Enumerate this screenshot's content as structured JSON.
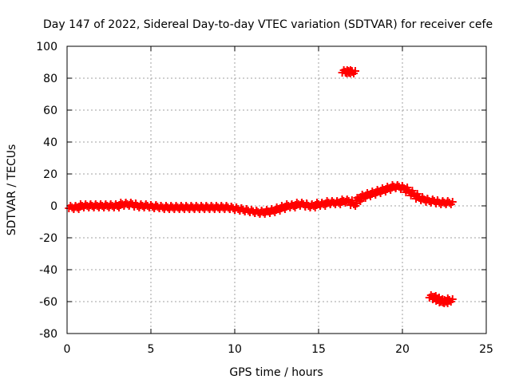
{
  "chart_data": {
    "type": "scatter",
    "title": "Day 147 of 2022, Sidereal Day-to-day VTEC variation (SDTVAR) for receiver cefe",
    "xlabel": "GPS time / hours",
    "ylabel": "SDTVAR / TECUs",
    "xlim": [
      0,
      25
    ],
    "ylim": [
      -80,
      100
    ],
    "xticks": [
      0,
      5,
      10,
      15,
      20,
      25
    ],
    "yticks": [
      -80,
      -60,
      -40,
      -20,
      0,
      20,
      40,
      60,
      80,
      100
    ],
    "grid": true,
    "marker": "plus",
    "series": [
      {
        "name": "SDTVAR",
        "color": "#ff0000",
        "x": [
          0.3,
          0.6,
          0.9,
          1.2,
          1.5,
          1.8,
          2.1,
          2.4,
          2.7,
          3.0,
          3.3,
          3.6,
          3.9,
          4.2,
          4.5,
          4.8,
          5.1,
          5.4,
          5.7,
          6.0,
          6.3,
          6.6,
          6.9,
          7.2,
          7.5,
          7.8,
          8.1,
          8.4,
          8.7,
          9.0,
          9.3,
          9.6,
          9.9,
          10.2,
          10.5,
          10.8,
          11.1,
          11.4,
          11.7,
          12.0,
          12.3,
          12.6,
          12.9,
          13.2,
          13.5,
          13.8,
          14.1,
          14.4,
          14.7,
          15.0,
          15.3,
          15.6,
          15.9,
          16.2,
          16.5,
          16.8,
          17.1,
          17.4,
          17.7,
          18.0,
          18.3,
          18.6,
          18.9,
          19.2,
          19.5,
          19.8,
          20.1,
          20.4,
          20.7,
          21.0,
          21.3,
          21.6,
          21.9,
          22.2,
          22.5,
          22.8,
          16.6,
          16.8,
          17.0,
          21.8,
          22.0,
          22.2,
          22.4,
          22.6,
          22.8
        ],
        "y": [
          -1,
          -1,
          0,
          0,
          0,
          0,
          0,
          0,
          0,
          0,
          1,
          1,
          1,
          0,
          0,
          0,
          -0.5,
          -0.5,
          -1,
          -1,
          -1,
          -1,
          -1,
          -1,
          -1,
          -1,
          -1,
          -1,
          -1,
          -1,
          -1,
          -1,
          -1.5,
          -2,
          -2.5,
          -3,
          -3.5,
          -4,
          -4,
          -3.5,
          -3,
          -2,
          -1,
          0,
          0,
          1,
          1,
          0,
          0,
          1,
          1,
          2,
          2,
          2,
          3,
          3,
          1,
          4,
          6,
          7,
          8,
          9,
          10,
          11,
          12,
          12,
          11,
          9,
          7,
          5,
          4,
          3,
          3,
          2,
          2,
          2,
          84,
          84,
          84,
          -57,
          -58,
          -59,
          -60,
          -60,
          -59
        ]
      }
    ]
  }
}
